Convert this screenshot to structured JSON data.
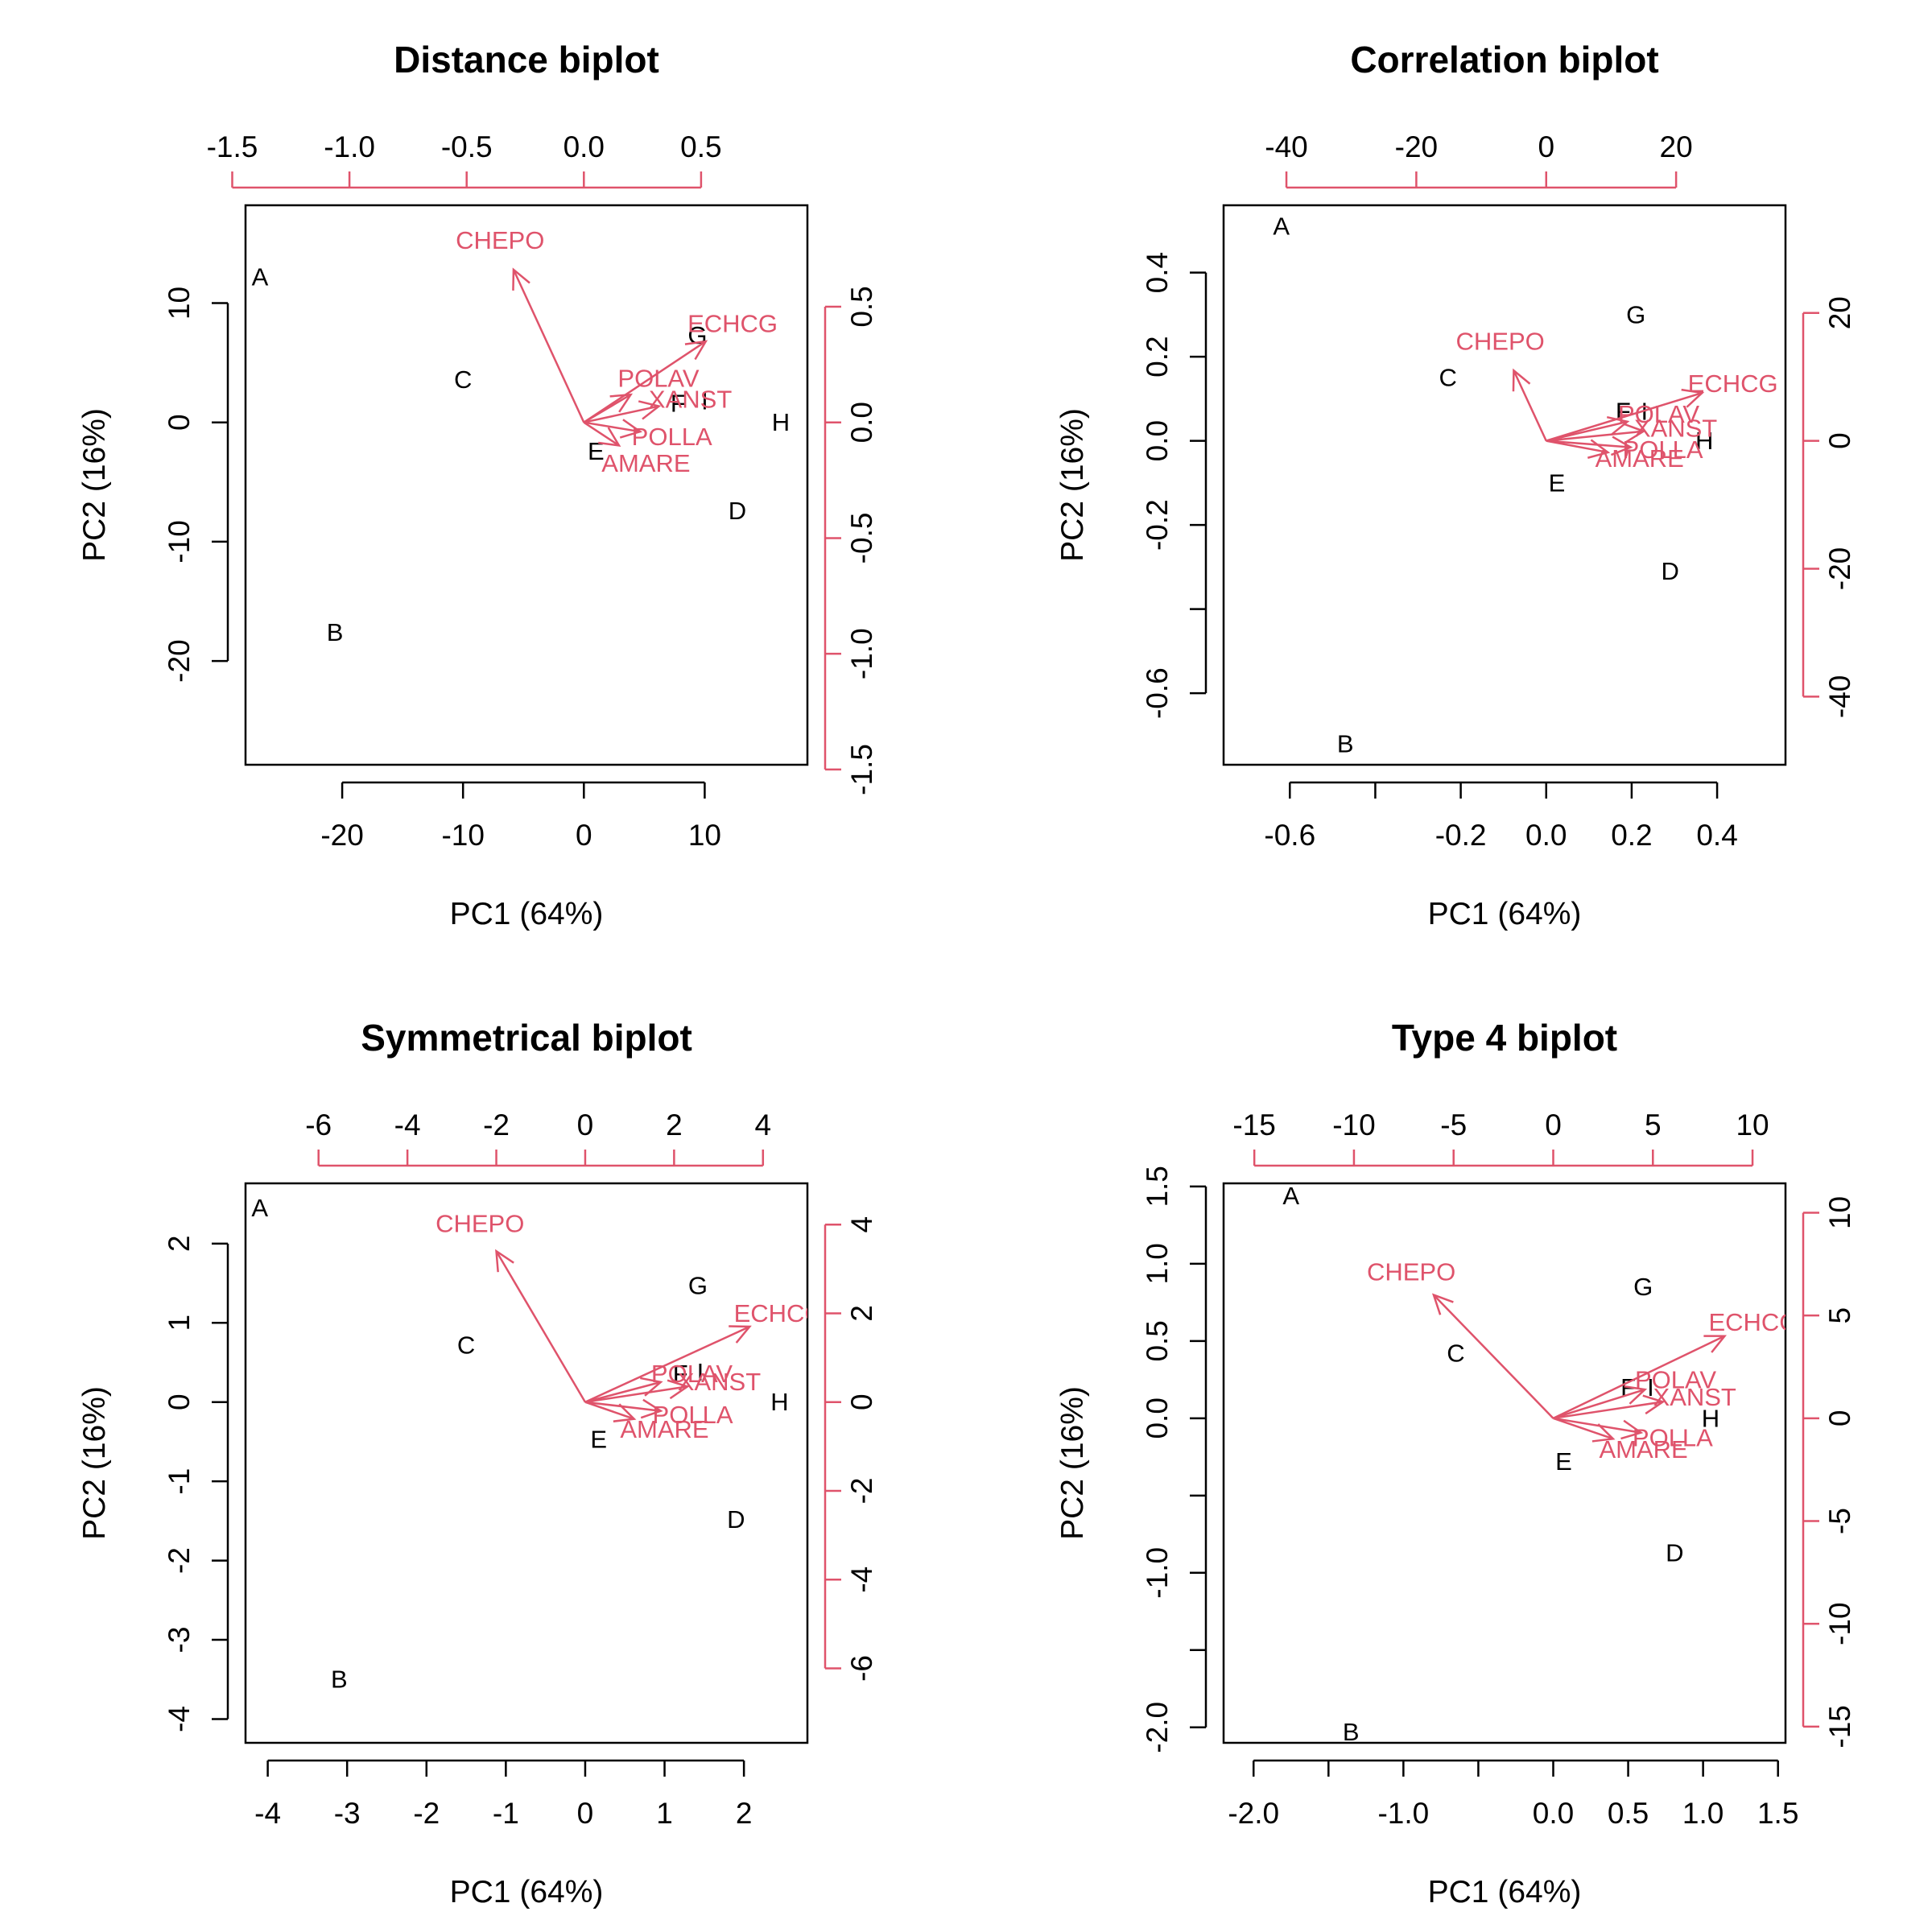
{
  "xlabel": "PC1 (64%)",
  "ylabel": "PC2 (16%)",
  "colors": {
    "axis": "#000000",
    "loading": "#DF536B"
  },
  "chart_data": [
    {
      "type": "scatter",
      "title": "Distance biplot",
      "xlim": [
        -28,
        18.5
      ],
      "ylim": [
        -28.7,
        18.2
      ],
      "xticks": [
        -20,
        -10,
        0,
        10
      ],
      "yticks": [
        -20,
        -10,
        0,
        10
      ],
      "top_ticks": [
        -1.5,
        -1.0,
        -0.5,
        0.0,
        0.5
      ],
      "top_tick_labels": [
        "-1.5",
        "-1.0",
        "-0.5",
        "0.0",
        "0.5"
      ],
      "right_ticks": [
        -1.5,
        -1.0,
        -0.5,
        0.0,
        0.5
      ],
      "right_tick_labels": [
        "-1.5",
        "-1.0",
        "-0.5",
        "0.0",
        "0.5"
      ],
      "loading_scale": 19.4,
      "observations": [
        {
          "label": "A",
          "x": -26.8,
          "y": 12.2
        },
        {
          "label": "B",
          "x": -20.6,
          "y": -17.6
        },
        {
          "label": "C",
          "x": -10.0,
          "y": 3.6
        },
        {
          "label": "D",
          "x": 12.7,
          "y": -7.4
        },
        {
          "label": "E",
          "x": 1.0,
          "y": -2.4
        },
        {
          "label": "F",
          "x": 7.8,
          "y": 1.6
        },
        {
          "label": "G",
          "x": 9.4,
          "y": 7.3
        },
        {
          "label": "H",
          "x": 16.3,
          "y": 0.0
        },
        {
          "label": "I",
          "x": 10.0,
          "y": 1.8
        }
      ],
      "loadings": [
        {
          "label": "CHEPO",
          "x": -0.3,
          "y": 0.66
        },
        {
          "label": "ECHCG",
          "x": 0.52,
          "y": 0.35
        },
        {
          "label": "POLAV",
          "x": 0.2,
          "y": 0.12
        },
        {
          "label": "XANST",
          "x": 0.32,
          "y": 0.07
        },
        {
          "label": "POLLA",
          "x": 0.24,
          "y": -0.04
        },
        {
          "label": "AMARE",
          "x": 0.15,
          "y": -0.1
        }
      ]
    },
    {
      "type": "scatter",
      "title": "Correlation biplot",
      "xlim": [
        -0.755,
        0.56
      ],
      "ylim": [
        -0.77,
        0.56
      ],
      "xticks": [
        -0.6,
        -0.2,
        0.0,
        0.2,
        0.4
      ],
      "xtick_labels": [
        "-0.6",
        "-0.2",
        "0.0",
        "0.2",
        "0.4"
      ],
      "xticks_unlabeled": [
        -0.4
      ],
      "yticks": [
        -0.6,
        -0.2,
        0.0,
        0.2,
        0.4
      ],
      "ytick_labels": [
        "-0.6",
        "-0.2",
        "0.0",
        "0.2",
        "0.4"
      ],
      "yticks_unlabeled": [
        -0.4
      ],
      "top_ticks": [
        -40,
        -20,
        0,
        20
      ],
      "top_tick_labels": [
        "-40",
        "-20",
        "0",
        "20"
      ],
      "right_ticks": [
        -40,
        -20,
        0,
        20
      ],
      "right_tick_labels": [
        "-40",
        "-20",
        "0",
        "20"
      ],
      "loading_scale": 0.0152,
      "observations": [
        {
          "label": "A",
          "x": -0.62,
          "y": 0.51
        },
        {
          "label": "B",
          "x": -0.47,
          "y": -0.72
        },
        {
          "label": "C",
          "x": -0.23,
          "y": 0.15
        },
        {
          "label": "D",
          "x": 0.29,
          "y": -0.31
        },
        {
          "label": "E",
          "x": 0.025,
          "y": -0.1
        },
        {
          "label": "F",
          "x": 0.18,
          "y": 0.07
        },
        {
          "label": "G",
          "x": 0.21,
          "y": 0.3
        },
        {
          "label": "H",
          "x": 0.37,
          "y": 0.0
        },
        {
          "label": "I",
          "x": 0.23,
          "y": 0.07
        }
      ],
      "loadings": [
        {
          "label": "CHEPO",
          "x": -5.0,
          "y": 11.0
        },
        {
          "label": "ECHCG",
          "x": 24.0,
          "y": 7.5
        },
        {
          "label": "POLAV",
          "x": 12.5,
          "y": 3.0
        },
        {
          "label": "XANST",
          "x": 15.0,
          "y": 1.5
        },
        {
          "label": "POLLA",
          "x": 13.0,
          "y": -1.0
        },
        {
          "label": "AMARE",
          "x": 9.5,
          "y": -1.8
        }
      ]
    },
    {
      "type": "scatter",
      "title": "Symmetrical biplot",
      "xlim": [
        -4.28,
        2.8
      ],
      "ylim": [
        -4.3,
        2.76
      ],
      "xticks": [
        -4,
        -3,
        -2,
        -1,
        0,
        1,
        2
      ],
      "yticks": [
        -4,
        -3,
        -2,
        -1,
        0,
        1,
        2
      ],
      "top_ticks": [
        -6,
        -4,
        -2,
        0,
        2,
        4
      ],
      "top_tick_labels": [
        "-6",
        "-4",
        "-2",
        "0",
        "2",
        "4"
      ],
      "right_ticks": [
        -6,
        -4,
        -2,
        0,
        2,
        4
      ],
      "right_tick_labels": [
        "-6",
        "-4",
        "-2",
        "0",
        "2",
        "4"
      ],
      "loading_scale": 0.56,
      "observations": [
        {
          "label": "A",
          "x": -4.1,
          "y": 2.45
        },
        {
          "label": "B",
          "x": -3.1,
          "y": -3.5
        },
        {
          "label": "C",
          "x": -1.5,
          "y": 0.72
        },
        {
          "label": "D",
          "x": 1.9,
          "y": -1.48
        },
        {
          "label": "E",
          "x": 0.17,
          "y": -0.47
        },
        {
          "label": "F",
          "x": 1.2,
          "y": 0.36
        },
        {
          "label": "G",
          "x": 1.42,
          "y": 1.47
        },
        {
          "label": "H",
          "x": 2.45,
          "y": 0.0
        },
        {
          "label": "I",
          "x": 1.45,
          "y": 0.38
        }
      ],
      "loadings": [
        {
          "label": "CHEPO",
          "x": -2.0,
          "y": 3.4
        },
        {
          "label": "ECHCG",
          "x": 3.7,
          "y": 1.7
        },
        {
          "label": "POLAV",
          "x": 1.7,
          "y": 0.45
        },
        {
          "label": "XANST",
          "x": 2.3,
          "y": 0.35
        },
        {
          "label": "POLLA",
          "x": 1.7,
          "y": -0.2
        },
        {
          "label": "AMARE",
          "x": 1.1,
          "y": -0.38
        }
      ]
    },
    {
      "type": "scatter",
      "title": "Type 4 biplot",
      "xlim": [
        -2.2,
        1.55
      ],
      "ylim": [
        -2.1,
        1.52
      ],
      "xticks": [
        -2.0,
        -1.0,
        0.0,
        0.5,
        1.0,
        1.5
      ],
      "xtick_labels": [
        "-2.0",
        "-1.0",
        "0.0",
        "0.5",
        "1.0",
        "1.5"
      ],
      "xticks_unlabeled": [
        -1.5,
        -0.5
      ],
      "yticks": [
        -2.0,
        -1.0,
        0.0,
        0.5,
        1.0,
        1.5
      ],
      "ytick_labels": [
        "-2.0",
        "-1.0",
        "0.0",
        "0.5",
        "1.0",
        "1.5"
      ],
      "yticks_unlabeled": [
        -1.5,
        -0.5
      ],
      "top_ticks": [
        -15,
        -10,
        -5,
        0,
        5,
        10
      ],
      "top_tick_labels": [
        "-15",
        "-10",
        "-5",
        "0",
        "5",
        "10"
      ],
      "right_ticks": [
        -15,
        -10,
        -5,
        0,
        5,
        10
      ],
      "right_tick_labels": [
        "-15",
        "-10",
        "-5",
        "0",
        "5",
        "10"
      ],
      "loading_scale": 0.133,
      "observations": [
        {
          "label": "A",
          "x": -1.75,
          "y": 1.44
        },
        {
          "label": "B",
          "x": -1.35,
          "y": -2.03
        },
        {
          "label": "C",
          "x": -0.65,
          "y": 0.42
        },
        {
          "label": "D",
          "x": 0.81,
          "y": -0.87
        },
        {
          "label": "E",
          "x": 0.07,
          "y": -0.28
        },
        {
          "label": "F",
          "x": 0.5,
          "y": 0.2
        },
        {
          "label": "G",
          "x": 0.6,
          "y": 0.85
        },
        {
          "label": "H",
          "x": 1.05,
          "y": 0.0
        },
        {
          "label": "I",
          "x": 0.65,
          "y": 0.2
        }
      ],
      "loadings": [
        {
          "label": "CHEPO",
          "x": -6.0,
          "y": 6.0
        },
        {
          "label": "ECHCG",
          "x": 8.6,
          "y": 4.0
        },
        {
          "label": "POLAV",
          "x": 4.6,
          "y": 1.4
        },
        {
          "label": "XANST",
          "x": 5.5,
          "y": 0.8
        },
        {
          "label": "POLLA",
          "x": 4.4,
          "y": -0.7
        },
        {
          "label": "AMARE",
          "x": 3.0,
          "y": -1.0
        }
      ]
    }
  ]
}
